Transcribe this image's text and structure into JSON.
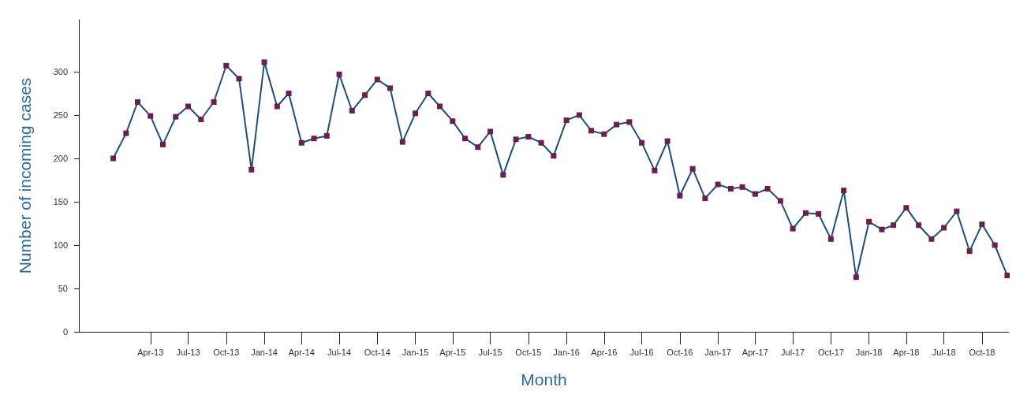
{
  "chart_data": {
    "type": "line",
    "xlabel": "Month",
    "ylabel": "Number of incoming cases",
    "x": [
      "2013-01",
      "2013-02",
      "2013-03",
      "2013-04",
      "2013-05",
      "2013-06",
      "2013-07",
      "2013-08",
      "2013-09",
      "2013-10",
      "2013-11",
      "2013-12",
      "2014-01",
      "2014-02",
      "2014-03",
      "2014-04",
      "2014-05",
      "2014-06",
      "2014-07",
      "2014-08",
      "2014-09",
      "2014-10",
      "2014-11",
      "2014-12",
      "2015-01",
      "2015-02",
      "2015-03",
      "2015-04",
      "2015-05",
      "2015-06",
      "2015-07",
      "2015-08",
      "2015-09",
      "2015-10",
      "2015-11",
      "2015-12",
      "2016-01",
      "2016-02",
      "2016-03",
      "2016-04",
      "2016-05",
      "2016-06",
      "2016-07",
      "2016-08",
      "2016-09",
      "2016-10",
      "2016-11",
      "2016-12",
      "2017-01",
      "2017-02",
      "2017-03",
      "2017-04",
      "2017-05",
      "2017-06",
      "2017-07",
      "2017-08",
      "2017-09",
      "2017-10",
      "2017-11",
      "2017-12",
      "2018-01",
      "2018-02",
      "2018-03",
      "2018-04",
      "2018-05",
      "2018-06",
      "2018-07",
      "2018-08",
      "2018-09",
      "2018-10",
      "2018-11",
      "2018-12"
    ],
    "series": [
      {
        "color": "#1f4e79",
        "values": [
          200,
          229,
          265,
          249,
          216,
          248,
          260,
          245,
          265,
          307,
          292,
          187,
          311,
          260,
          275,
          218,
          223,
          226,
          297,
          255,
          273,
          291,
          281,
          219,
          252,
          275,
          260,
          243,
          223,
          213,
          231,
          181,
          222,
          225,
          218,
          203,
          244,
          250,
          232,
          228,
          239,
          242,
          218,
          186,
          220,
          157,
          188,
          154,
          170,
          165,
          167,
          159,
          165,
          151,
          119,
          137,
          136,
          107,
          163,
          63,
          127,
          118,
          123,
          143,
          123,
          107,
          120,
          139,
          93,
          124,
          100,
          65
        ]
      }
    ],
    "marker": "square",
    "line_style": "solid",
    "grid": false,
    "xlim": [
      "2012-10-10",
      "2018-12-05"
    ],
    "xticks": [
      {
        "value": "2013-04",
        "label": "Apr-13"
      },
      {
        "value": "2013-07",
        "label": "Jul-13"
      },
      {
        "value": "2013-10",
        "label": "Oct-13"
      },
      {
        "value": "2014-01",
        "label": "Jan-14"
      },
      {
        "value": "2014-04",
        "label": "Apr-14"
      },
      {
        "value": "2014-07",
        "label": "Jul-14"
      },
      {
        "value": "2014-10",
        "label": "Oct-14"
      },
      {
        "value": "2015-01",
        "label": "Jan-15"
      },
      {
        "value": "2015-04",
        "label": "Apr-15"
      },
      {
        "value": "2015-07",
        "label": "Jul-15"
      },
      {
        "value": "2015-10",
        "label": "Oct-15"
      },
      {
        "value": "2016-01",
        "label": "Jan-16"
      },
      {
        "value": "2016-04",
        "label": "Apr-16"
      },
      {
        "value": "2016-07",
        "label": "Jul-16"
      },
      {
        "value": "2016-10",
        "label": "Oct-16"
      },
      {
        "value": "2017-01",
        "label": "Jan-17"
      },
      {
        "value": "2017-04",
        "label": "Apr-17"
      },
      {
        "value": "2017-07",
        "label": "Jul-17"
      },
      {
        "value": "2017-10",
        "label": "Oct-17"
      },
      {
        "value": "2018-01",
        "label": "Jan-18"
      },
      {
        "value": "2018-04",
        "label": "Apr-18"
      },
      {
        "value": "2018-07",
        "label": "Jul-18"
      },
      {
        "value": "2018-10",
        "label": "Oct-18"
      }
    ],
    "ylim": [
      0,
      360
    ],
    "yticks": [
      0,
      50,
      100,
      150,
      200,
      250,
      300
    ]
  }
}
